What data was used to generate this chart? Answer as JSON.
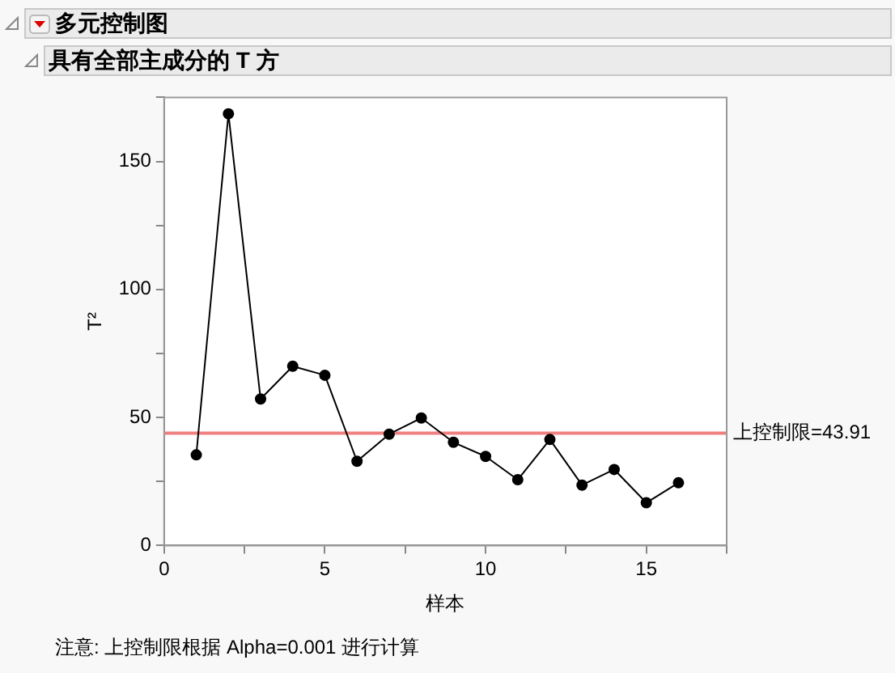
{
  "chart_data": {
    "type": "line",
    "title": "多元控制图",
    "subtitle": "具有全部主成分的 T 方",
    "xlabel": "样本",
    "ylabel": "T²",
    "x": [
      1,
      2,
      3,
      4,
      5,
      6,
      7,
      8,
      9,
      10,
      11,
      12,
      13,
      14,
      15,
      16
    ],
    "series": [
      {
        "color": "#000000",
        "values": [
          35.4,
          168.6,
          57.2,
          70.0,
          66.5,
          32.9,
          43.5,
          49.8,
          40.3,
          34.8,
          25.7,
          41.4,
          23.6,
          29.7,
          16.7,
          24.5
        ]
      }
    ],
    "xlim": [
      0,
      17.5
    ],
    "xticks": [
      0,
      {
        "value": 2.5,
        "label": null
      },
      5,
      {
        "value": 7.5,
        "label": null
      },
      10,
      {
        "value": 12.5,
        "label": null
      },
      15,
      {
        "value": 17.5,
        "label": null
      }
    ],
    "ylim": [
      0,
      175
    ],
    "yticks": [
      0,
      {
        "value": 25,
        "label": null
      },
      50,
      {
        "value": 75,
        "label": null
      },
      100,
      {
        "value": 125,
        "label": null
      },
      150,
      {
        "value": 175,
        "label": null
      }
    ],
    "ref_lines": [
      {
        "axis": "y",
        "value": 43.91,
        "label": "上控制限=43.91",
        "color": "#f08080"
      }
    ],
    "annotations": [
      "注意: 上控制限根据 Alpha=0.001 进行计算"
    ],
    "marker": "circle",
    "line_style": "solid",
    "grid": false,
    "legend": false
  }
}
